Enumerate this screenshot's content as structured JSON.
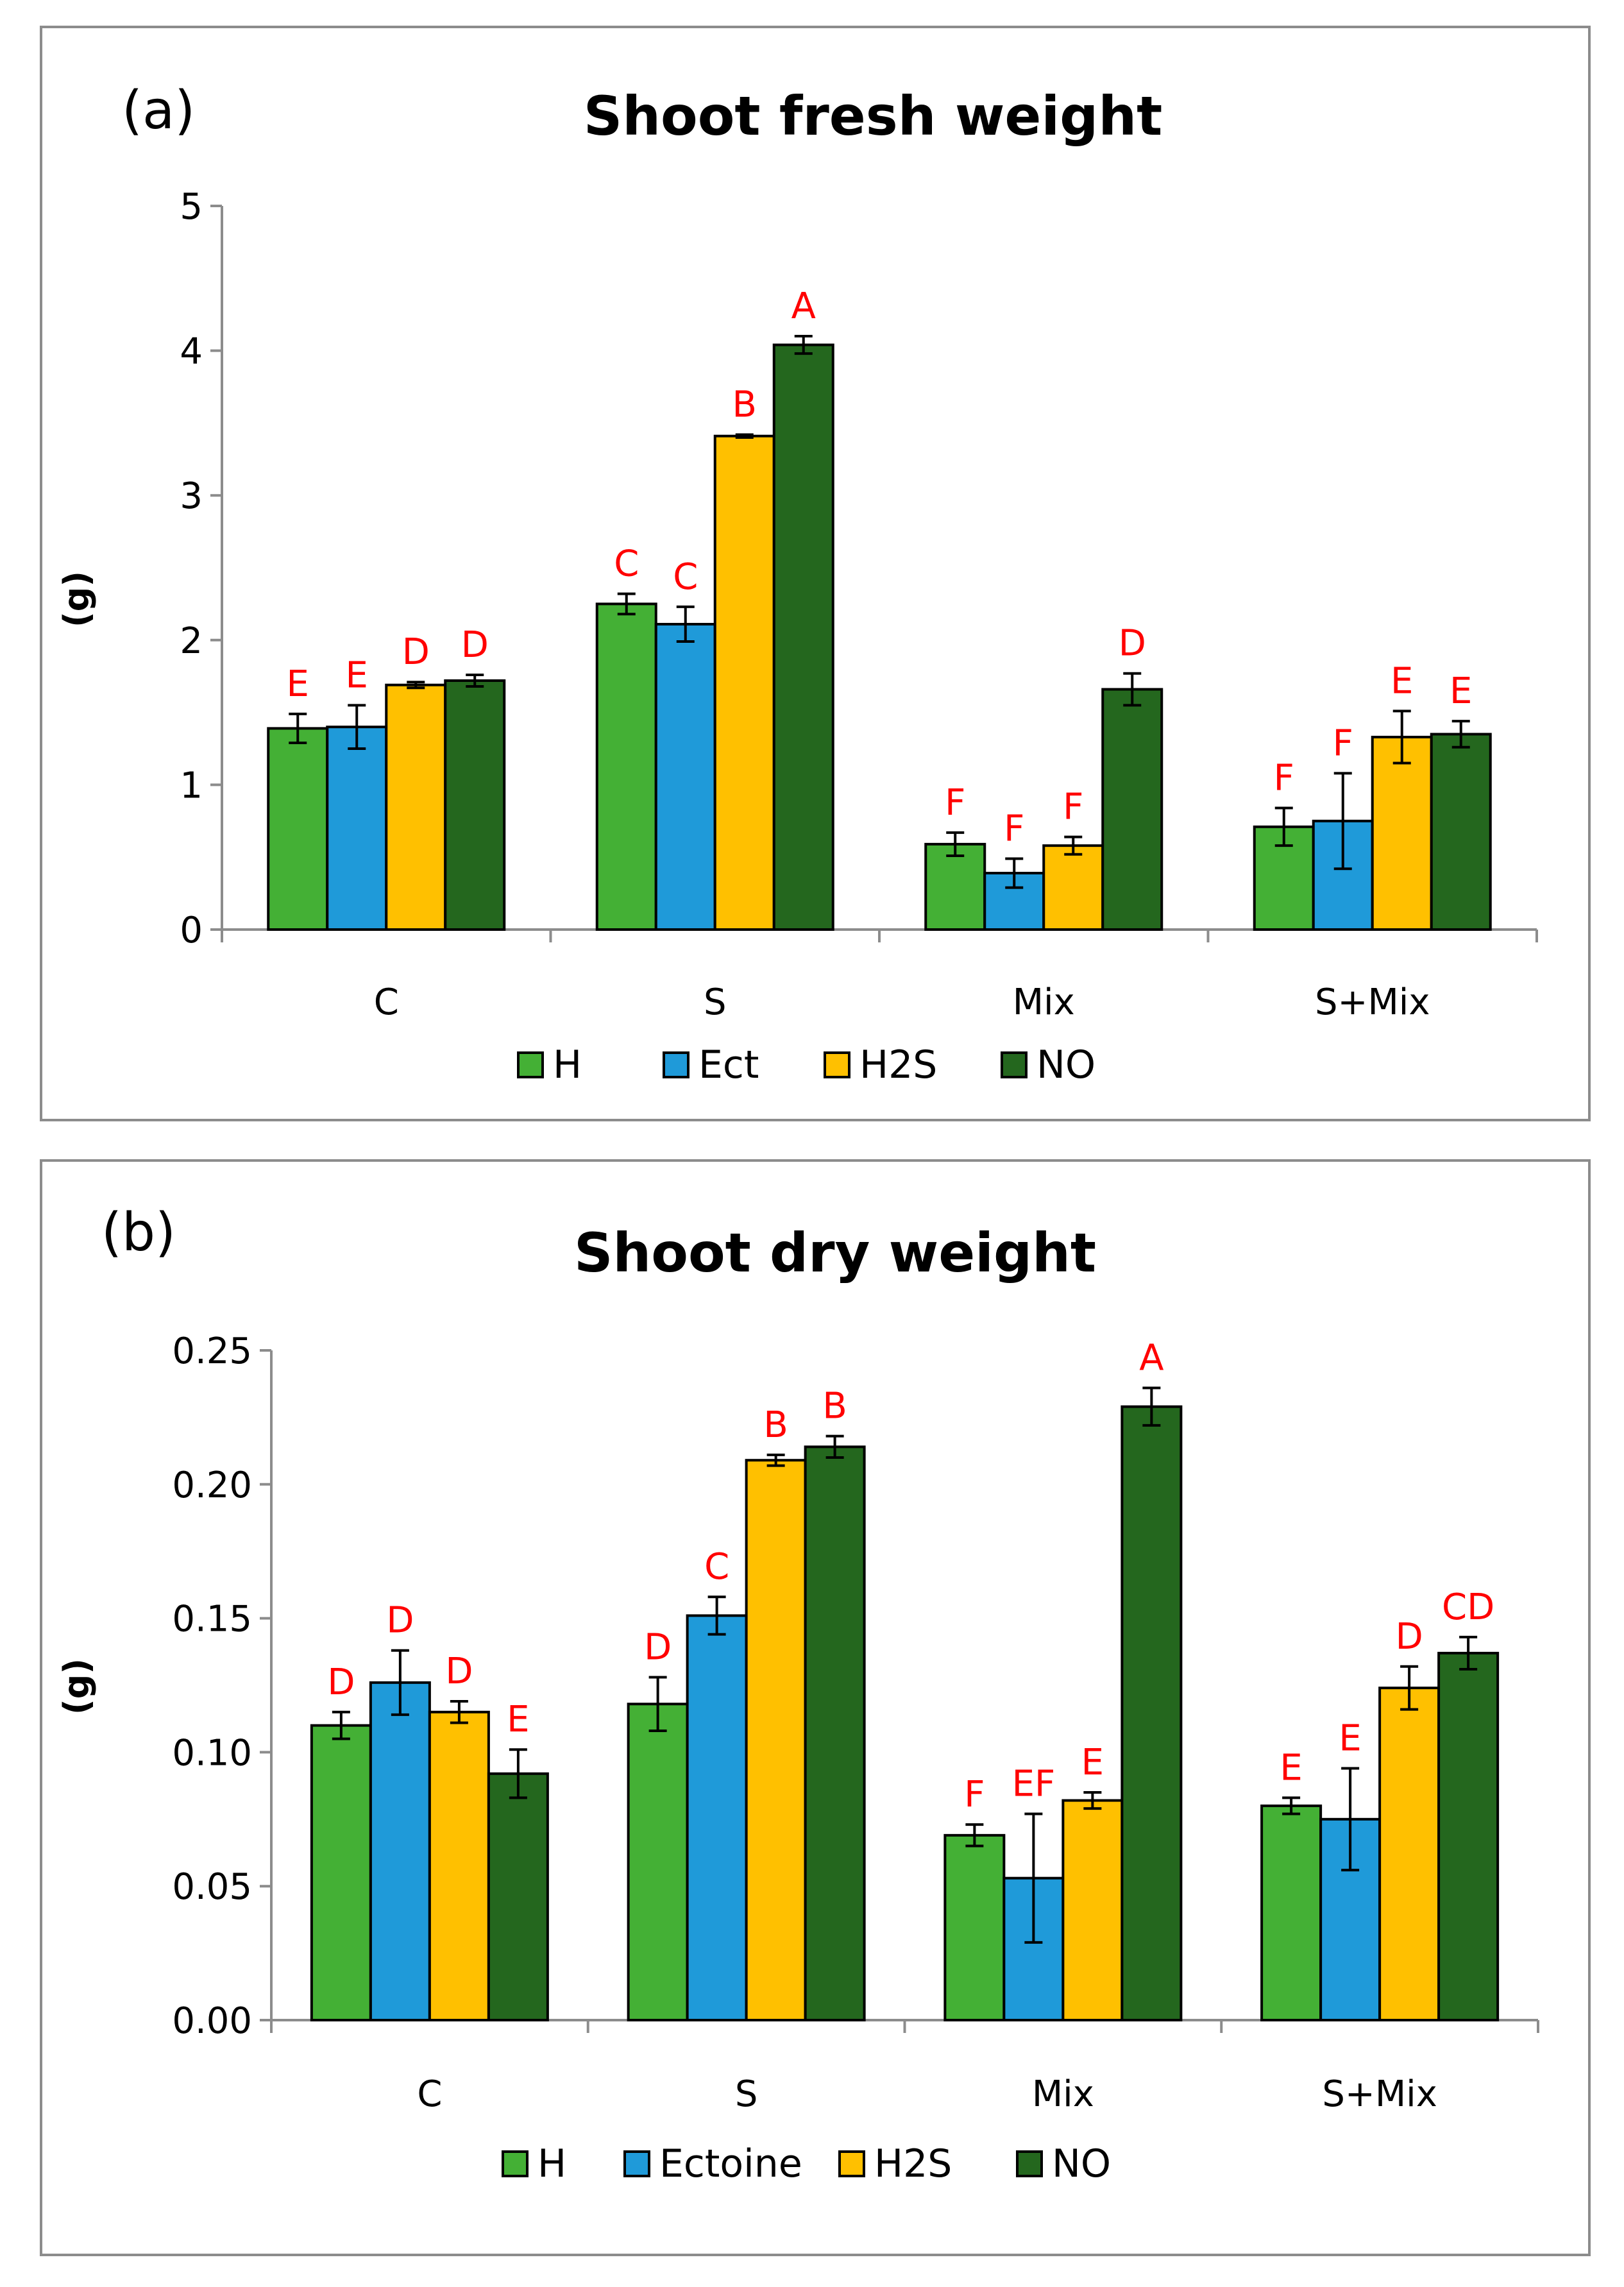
{
  "chart_data": [
    {
      "type": "bar",
      "panel_label": "(a)",
      "title": "Shoot fresh weight",
      "xlabel": "",
      "ylabel": "(g)",
      "ylim": [
        0,
        5
      ],
      "yticks": [
        "0",
        "1",
        "2",
        "3",
        "4",
        "5"
      ],
      "categories": [
        "C",
        "S",
        "Mix",
        "S+Mix"
      ],
      "series": [
        {
          "name": "H",
          "color": "#44b035",
          "values": [
            1.39,
            2.25,
            0.59,
            0.71
          ],
          "errors": [
            0.1,
            0.07,
            0.08,
            0.13
          ],
          "letters": [
            "E",
            "C",
            "F",
            "F"
          ]
        },
        {
          "name": "Ect",
          "color": "#1f9ad9",
          "values": [
            1.4,
            2.11,
            0.39,
            0.75
          ],
          "errors": [
            0.15,
            0.12,
            0.1,
            0.33
          ],
          "letters": [
            "E",
            "C",
            "F",
            "F"
          ]
        },
        {
          "name": "H2S",
          "color": "#ffc000",
          "values": [
            1.69,
            3.41,
            0.58,
            1.33
          ],
          "errors": [
            0.02,
            0.01,
            0.06,
            0.18
          ],
          "letters": [
            "D",
            "B",
            "F",
            "E"
          ]
        },
        {
          "name": "NO",
          "color": "#24671e",
          "values": [
            1.72,
            4.04,
            1.66,
            1.35
          ],
          "errors": [
            0.04,
            0.06,
            0.11,
            0.09
          ],
          "letters": [
            "D",
            "A",
            "D",
            "E"
          ]
        }
      ]
    },
    {
      "type": "bar",
      "panel_label": "(b)",
      "title": "Shoot dry weight",
      "xlabel": "",
      "ylabel": "(g)",
      "ylim": [
        0,
        0.25
      ],
      "yticks": [
        "0.00",
        "0.05",
        "0.10",
        "0.15",
        "0.20",
        "0.25"
      ],
      "categories": [
        "C",
        "S",
        "Mix",
        "S+Mix"
      ],
      "series": [
        {
          "name": "H",
          "color": "#44b035",
          "values": [
            0.11,
            0.118,
            0.069,
            0.08
          ],
          "errors": [
            0.005,
            0.01,
            0.004,
            0.003
          ],
          "letters": [
            "D",
            "D",
            "F",
            "E"
          ]
        },
        {
          "name": "Ectoine",
          "color": "#1f9ad9",
          "values": [
            0.126,
            0.151,
            0.053,
            0.075
          ],
          "errors": [
            0.012,
            0.007,
            0.024,
            0.019
          ],
          "letters": [
            "D",
            "C",
            "EF",
            "E"
          ]
        },
        {
          "name": "H2S",
          "color": "#ffc000",
          "values": [
            0.115,
            0.209,
            0.082,
            0.124
          ],
          "errors": [
            0.004,
            0.002,
            0.003,
            0.008
          ],
          "letters": [
            "D",
            "B",
            "E",
            "D"
          ]
        },
        {
          "name": "NO",
          "color": "#24671e",
          "values": [
            0.092,
            0.214,
            0.229,
            0.137
          ],
          "errors": [
            0.009,
            0.004,
            0.007,
            0.006
          ],
          "letters": [
            "E",
            "B",
            "A",
            "CD"
          ]
        }
      ]
    }
  ]
}
